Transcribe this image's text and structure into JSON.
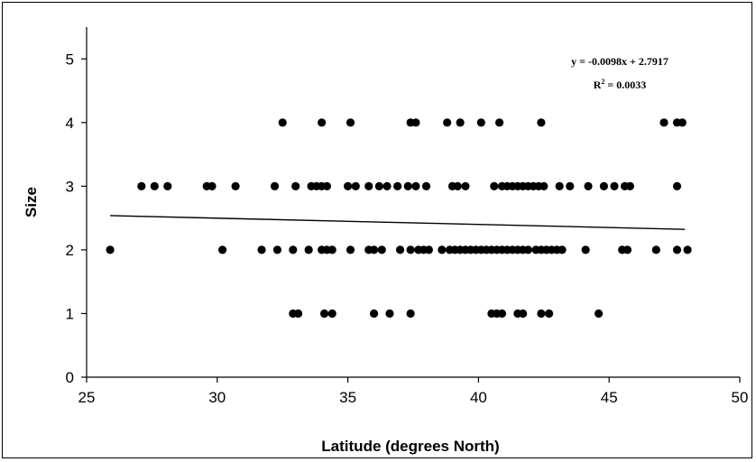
{
  "chart_data": {
    "type": "scatter",
    "title": "",
    "xlabel": "Latitude (degrees North)",
    "ylabel": "Size",
    "xlim": [
      25,
      50
    ],
    "ylim": [
      0,
      5.5
    ],
    "xticks": [
      25,
      30,
      35,
      40,
      45,
      50
    ],
    "yticks": [
      0,
      1,
      2,
      3,
      4,
      5
    ],
    "grid": false,
    "legend": "none",
    "trendline": {
      "slope": -0.0098,
      "intercept": 2.7917,
      "x_range": [
        25.9,
        47.9
      ],
      "equation": "y = -0.0098x + 2.7917",
      "r2_label": "R",
      "r2_sup": "2",
      "r2_value": " = 0.0033"
    },
    "marker_color": "#000000",
    "points": [
      {
        "x": 32.5,
        "y": 4
      },
      {
        "x": 34.0,
        "y": 4
      },
      {
        "x": 35.1,
        "y": 4
      },
      {
        "x": 37.4,
        "y": 4
      },
      {
        "x": 37.6,
        "y": 4
      },
      {
        "x": 38.8,
        "y": 4
      },
      {
        "x": 39.3,
        "y": 4
      },
      {
        "x": 40.1,
        "y": 4
      },
      {
        "x": 40.8,
        "y": 4
      },
      {
        "x": 42.4,
        "y": 4
      },
      {
        "x": 47.1,
        "y": 4
      },
      {
        "x": 47.6,
        "y": 4
      },
      {
        "x": 47.8,
        "y": 4
      },
      {
        "x": 27.1,
        "y": 3
      },
      {
        "x": 27.6,
        "y": 3
      },
      {
        "x": 28.1,
        "y": 3
      },
      {
        "x": 29.6,
        "y": 3
      },
      {
        "x": 29.8,
        "y": 3
      },
      {
        "x": 30.7,
        "y": 3
      },
      {
        "x": 32.2,
        "y": 3
      },
      {
        "x": 33.0,
        "y": 3
      },
      {
        "x": 33.6,
        "y": 3
      },
      {
        "x": 33.8,
        "y": 3
      },
      {
        "x": 34.0,
        "y": 3
      },
      {
        "x": 34.2,
        "y": 3
      },
      {
        "x": 35.0,
        "y": 3
      },
      {
        "x": 35.3,
        "y": 3
      },
      {
        "x": 35.8,
        "y": 3
      },
      {
        "x": 36.2,
        "y": 3
      },
      {
        "x": 36.5,
        "y": 3
      },
      {
        "x": 36.9,
        "y": 3
      },
      {
        "x": 37.3,
        "y": 3
      },
      {
        "x": 37.6,
        "y": 3
      },
      {
        "x": 38.0,
        "y": 3
      },
      {
        "x": 39.0,
        "y": 3
      },
      {
        "x": 39.2,
        "y": 3
      },
      {
        "x": 39.5,
        "y": 3
      },
      {
        "x": 40.6,
        "y": 3
      },
      {
        "x": 40.9,
        "y": 3
      },
      {
        "x": 41.1,
        "y": 3
      },
      {
        "x": 41.3,
        "y": 3
      },
      {
        "x": 41.5,
        "y": 3
      },
      {
        "x": 41.7,
        "y": 3
      },
      {
        "x": 41.9,
        "y": 3
      },
      {
        "x": 42.1,
        "y": 3
      },
      {
        "x": 42.3,
        "y": 3
      },
      {
        "x": 42.5,
        "y": 3
      },
      {
        "x": 43.1,
        "y": 3
      },
      {
        "x": 43.5,
        "y": 3
      },
      {
        "x": 44.2,
        "y": 3
      },
      {
        "x": 44.8,
        "y": 3
      },
      {
        "x": 45.2,
        "y": 3
      },
      {
        "x": 45.6,
        "y": 3
      },
      {
        "x": 45.8,
        "y": 3
      },
      {
        "x": 47.6,
        "y": 3
      },
      {
        "x": 25.9,
        "y": 2
      },
      {
        "x": 30.2,
        "y": 2
      },
      {
        "x": 31.7,
        "y": 2
      },
      {
        "x": 32.3,
        "y": 2
      },
      {
        "x": 32.9,
        "y": 2
      },
      {
        "x": 33.5,
        "y": 2
      },
      {
        "x": 34.0,
        "y": 2
      },
      {
        "x": 34.2,
        "y": 2
      },
      {
        "x": 34.4,
        "y": 2
      },
      {
        "x": 35.1,
        "y": 2
      },
      {
        "x": 35.8,
        "y": 2
      },
      {
        "x": 36.0,
        "y": 2
      },
      {
        "x": 36.3,
        "y": 2
      },
      {
        "x": 37.0,
        "y": 2
      },
      {
        "x": 37.4,
        "y": 2
      },
      {
        "x": 37.7,
        "y": 2
      },
      {
        "x": 37.9,
        "y": 2
      },
      {
        "x": 38.1,
        "y": 2
      },
      {
        "x": 38.6,
        "y": 2
      },
      {
        "x": 38.9,
        "y": 2
      },
      {
        "x": 39.1,
        "y": 2
      },
      {
        "x": 39.3,
        "y": 2
      },
      {
        "x": 39.5,
        "y": 2
      },
      {
        "x": 39.7,
        "y": 2
      },
      {
        "x": 39.9,
        "y": 2
      },
      {
        "x": 40.1,
        "y": 2
      },
      {
        "x": 40.3,
        "y": 2
      },
      {
        "x": 40.5,
        "y": 2
      },
      {
        "x": 40.7,
        "y": 2
      },
      {
        "x": 40.9,
        "y": 2
      },
      {
        "x": 41.1,
        "y": 2
      },
      {
        "x": 41.3,
        "y": 2
      },
      {
        "x": 41.5,
        "y": 2
      },
      {
        "x": 41.7,
        "y": 2
      },
      {
        "x": 41.9,
        "y": 2
      },
      {
        "x": 42.2,
        "y": 2
      },
      {
        "x": 42.4,
        "y": 2
      },
      {
        "x": 42.6,
        "y": 2
      },
      {
        "x": 42.8,
        "y": 2
      },
      {
        "x": 43.0,
        "y": 2
      },
      {
        "x": 43.2,
        "y": 2
      },
      {
        "x": 44.1,
        "y": 2
      },
      {
        "x": 45.5,
        "y": 2
      },
      {
        "x": 45.7,
        "y": 2
      },
      {
        "x": 46.8,
        "y": 2
      },
      {
        "x": 47.6,
        "y": 2
      },
      {
        "x": 48.0,
        "y": 2
      },
      {
        "x": 32.9,
        "y": 1
      },
      {
        "x": 33.1,
        "y": 1
      },
      {
        "x": 34.1,
        "y": 1
      },
      {
        "x": 34.4,
        "y": 1
      },
      {
        "x": 36.0,
        "y": 1
      },
      {
        "x": 36.6,
        "y": 1
      },
      {
        "x": 37.4,
        "y": 1
      },
      {
        "x": 40.5,
        "y": 1
      },
      {
        "x": 40.7,
        "y": 1
      },
      {
        "x": 40.9,
        "y": 1
      },
      {
        "x": 41.5,
        "y": 1
      },
      {
        "x": 41.7,
        "y": 1
      },
      {
        "x": 42.4,
        "y": 1
      },
      {
        "x": 42.7,
        "y": 1
      },
      {
        "x": 44.6,
        "y": 1
      }
    ]
  }
}
